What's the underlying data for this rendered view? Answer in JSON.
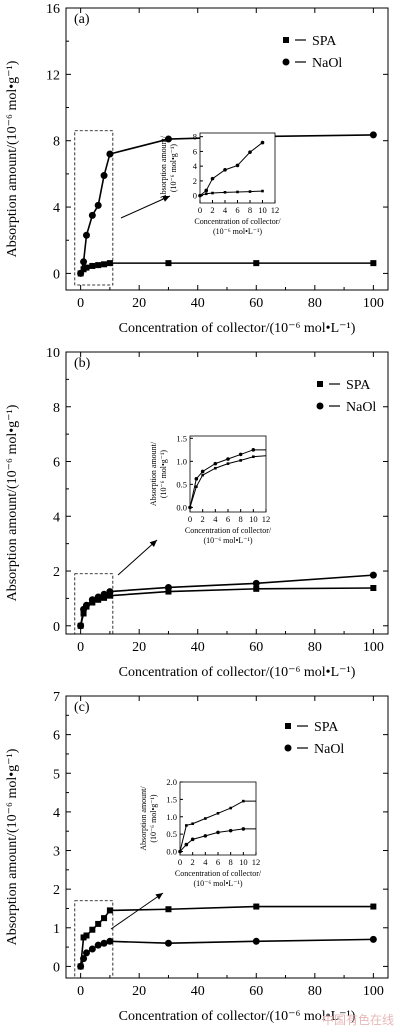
{
  "chart_data": [
    {
      "type": "line",
      "panel_label": "(a)",
      "xlabel": "Concentration of collector/(10⁻⁶ mol•L⁻¹)",
      "ylabel": "Absorption amount/(10⁻⁶ mol•g⁻¹)",
      "xlim": [
        -5,
        105
      ],
      "ylim": [
        -1,
        16
      ],
      "xticks": [
        "0",
        "20",
        "40",
        "60",
        "80",
        "100"
      ],
      "yticks": [
        "0",
        "4",
        "8",
        "12",
        "16"
      ],
      "legend": "top-right",
      "series": [
        {
          "name": "SPA",
          "marker": "square",
          "x": [
            0,
            1,
            2,
            4,
            6,
            8,
            10,
            30,
            60,
            100
          ],
          "y": [
            0,
            0.25,
            0.35,
            0.45,
            0.5,
            0.55,
            0.62,
            0.62,
            0.62,
            0.62
          ]
        },
        {
          "name": "NaOl",
          "marker": "circle",
          "x": [
            0,
            1,
            2,
            4,
            6,
            8,
            10,
            30,
            60,
            100
          ],
          "y": [
            0,
            0.7,
            2.3,
            3.5,
            4.1,
            5.9,
            7.2,
            8.1,
            8.25,
            8.35
          ]
        }
      ],
      "inset": {
        "xticks": [
          "0",
          "2",
          "4",
          "6",
          "8",
          "10",
          "12"
        ],
        "yticks": [
          "0",
          "2",
          "4",
          "6",
          "8"
        ],
        "xlim": [
          0,
          12
        ],
        "ylim": [
          -1,
          8.5
        ],
        "xlabel_line1": "Concentration of collector/",
        "xlabel_line2": "(10⁻⁶ mol•L⁻¹)",
        "ylabel_line1": "Absorption amount/",
        "ylabel_line2": "(10⁻⁶ mol•g⁻¹)"
      }
    },
    {
      "type": "line",
      "panel_label": "(b)",
      "xlabel": "Concentration of collector/(10⁻⁶ mol•L⁻¹)",
      "ylabel": "Absorption amount/(10⁻⁶ mol•g⁻¹)",
      "xlim": [
        -5,
        105
      ],
      "ylim": [
        -0.3,
        10
      ],
      "xticks": [
        "0",
        "20",
        "40",
        "60",
        "80",
        "100"
      ],
      "yticks": [
        "0",
        "2",
        "4",
        "6",
        "8",
        "10"
      ],
      "legend": "top-right",
      "series": [
        {
          "name": "SPA",
          "marker": "square",
          "x": [
            0,
            1,
            2,
            4,
            6,
            8,
            10,
            30,
            60,
            100
          ],
          "y": [
            0,
            0.45,
            0.7,
            0.85,
            0.95,
            1.02,
            1.1,
            1.25,
            1.35,
            1.38
          ]
        },
        {
          "name": "NaOl",
          "marker": "circle",
          "x": [
            0,
            1,
            2,
            4,
            6,
            8,
            10,
            30,
            60,
            100
          ],
          "y": [
            0,
            0.6,
            0.75,
            0.95,
            1.05,
            1.15,
            1.25,
            1.4,
            1.55,
            1.85
          ]
        }
      ],
      "inset": {
        "xticks": [
          "0",
          "2",
          "4",
          "6",
          "8",
          "10",
          "12"
        ],
        "yticks": [
          "0.0",
          "0.5",
          "1.0",
          "1.5"
        ],
        "xlim": [
          0,
          12
        ],
        "ylim": [
          -0.1,
          1.55
        ],
        "xlabel_line1": "Concentration of collector/",
        "xlabel_line2": "(10⁻⁶ mol•L⁻¹)",
        "ylabel_line1": "Absorption amount/",
        "ylabel_line2": "(10⁻⁶ mol•g⁻¹)",
        "series": [
          {
            "name": "SPA",
            "x": [
              0,
              1,
              2,
              4,
              6,
              8,
              10,
              12
            ],
            "y": [
              0,
              0.45,
              0.7,
              0.85,
              0.95,
              1.02,
              1.1,
              1.12
            ]
          },
          {
            "name": "NaOl",
            "x": [
              0,
              1,
              2,
              4,
              6,
              8,
              10,
              12
            ],
            "y": [
              0,
              0.62,
              0.78,
              0.95,
              1.05,
              1.15,
              1.25,
              1.25
            ]
          }
        ]
      }
    },
    {
      "type": "line",
      "panel_label": "(c)",
      "xlabel": "Concentration of collector/(10⁻⁶ mol•L⁻¹)",
      "ylabel": "Absorption amount/(10⁻⁶ mol•g⁻¹)",
      "xlim": [
        -5,
        105
      ],
      "ylim": [
        -0.3,
        7
      ],
      "xticks": [
        "0",
        "20",
        "40",
        "60",
        "80",
        "100"
      ],
      "yticks": [
        "0",
        "1",
        "2",
        "3",
        "4",
        "5",
        "6",
        "7"
      ],
      "legend": "top-right",
      "series": [
        {
          "name": "SPA",
          "marker": "square",
          "x": [
            0,
            1,
            2,
            4,
            6,
            8,
            10,
            30,
            60,
            100
          ],
          "y": [
            0,
            0.75,
            0.8,
            0.95,
            1.1,
            1.25,
            1.45,
            1.48,
            1.55,
            1.55
          ]
        },
        {
          "name": "NaOl",
          "marker": "circle",
          "x": [
            0,
            1,
            2,
            4,
            6,
            8,
            10,
            30,
            60,
            100
          ],
          "y": [
            0,
            0.2,
            0.35,
            0.45,
            0.55,
            0.6,
            0.65,
            0.6,
            0.65,
            0.7
          ]
        }
      ],
      "inset": {
        "xticks": [
          "0",
          "2",
          "4",
          "6",
          "8",
          "10",
          "12"
        ],
        "yticks": [
          "0.0",
          "0.5",
          "1.0",
          "1.5",
          "2.0"
        ],
        "xlim": [
          0,
          12
        ],
        "ylim": [
          -0.1,
          2.0
        ],
        "xlabel_line1": "Concentration of collector/",
        "xlabel_line2": "(10⁻⁶ mol•L⁻¹)",
        "ylabel_line1": "Absorption amount/",
        "ylabel_line2": "(10⁻⁶ mol•g⁻¹)",
        "series": [
          {
            "name": "SPA",
            "x": [
              0,
              1,
              2,
              4,
              6,
              8,
              10,
              12
            ],
            "y": [
              0,
              0.75,
              0.8,
              0.95,
              1.1,
              1.25,
              1.45,
              1.45
            ]
          },
          {
            "name": "NaOl",
            "x": [
              0,
              1,
              2,
              4,
              6,
              8,
              10,
              12
            ],
            "y": [
              0,
              0.2,
              0.35,
              0.45,
              0.55,
              0.6,
              0.65,
              0.65
            ]
          }
        ]
      }
    }
  ],
  "watermark": "中国有色在线"
}
